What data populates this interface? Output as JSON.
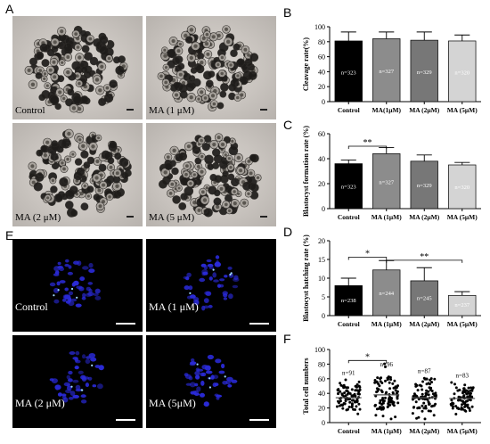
{
  "panel_letters": {
    "a": "A",
    "b": "B",
    "c": "C",
    "d": "D",
    "e": "E",
    "f": "F"
  },
  "panel_a": {
    "labels": [
      "Control",
      "MA (1 μM)",
      "MA (2 μM)",
      "MA (5 μM)"
    ]
  },
  "panel_e": {
    "labels": [
      "Control",
      "MA (1 μM)",
      "MA (2 μM)",
      "MA (5μM)"
    ]
  },
  "colors": {
    "control": "#000000",
    "ma1": "#8c8c8c",
    "ma2": "#777777",
    "ma5": "#d4d4d4",
    "nuclei": "#2a2ad8",
    "photo_bg": "#cfcac5"
  },
  "chart_data": [
    {
      "id": "B",
      "type": "bar",
      "ylabel": "Cleavage rate(%)",
      "categories": [
        "Control",
        "MA(1μM)",
        "MA (2μM)",
        "MA (5μM)"
      ],
      "values": [
        81,
        84,
        82,
        81
      ],
      "errors": [
        12,
        9,
        11,
        8
      ],
      "bar_labels": [
        "n=323",
        "n=327",
        "n=329",
        "n=320"
      ],
      "ylim": [
        0,
        100
      ],
      "yticks": [
        0,
        20,
        40,
        60,
        80,
        100
      ],
      "significance": []
    },
    {
      "id": "C",
      "type": "bar",
      "ylabel": "Blastocyst formation rate (%)",
      "categories": [
        "Control",
        "MA (1μM)",
        "MA (2μM)",
        "MA (5μM)"
      ],
      "values": [
        36,
        44,
        38,
        35
      ],
      "errors": [
        3,
        5,
        5,
        2
      ],
      "bar_labels": [
        "n=323",
        "n=327",
        "n=329",
        "n=320"
      ],
      "ylim": [
        0,
        60
      ],
      "yticks": [
        0,
        20,
        40,
        60
      ],
      "significance": [
        {
          "from": 0,
          "to": 1,
          "label": "**",
          "y": 50
        }
      ]
    },
    {
      "id": "D",
      "type": "bar",
      "ylabel": "Blastocyst hatching rate (%)",
      "categories": [
        "Control",
        "MA (1μM)",
        "MA (2μM)",
        "MA (5μM)"
      ],
      "values": [
        8,
        12.2,
        9.3,
        5.4
      ],
      "errors": [
        2,
        2.5,
        3.5,
        1
      ],
      "bar_labels": [
        "n=238",
        "n=244",
        "n=245",
        "n=237"
      ],
      "ylim": [
        0,
        20
      ],
      "yticks": [
        0,
        5,
        10,
        15,
        20
      ],
      "significance": [
        {
          "from": 0,
          "to": 1,
          "label": "*",
          "y": 15.6
        },
        {
          "from": 1,
          "to": 3,
          "label": "**",
          "y": 14.8
        }
      ]
    },
    {
      "id": "F",
      "type": "scatter",
      "ylabel": "Total cell numbers",
      "categories": [
        "Control",
        "MA (1μM)",
        "MA (2μM)",
        "MA (5μM)"
      ],
      "means": [
        34,
        38,
        34,
        33
      ],
      "sds": [
        11,
        14,
        12,
        10
      ],
      "counts": [
        91,
        96,
        87,
        83
      ],
      "group_labels": [
        "n=91",
        "n=96",
        "n=87",
        "n=83"
      ],
      "ylim": [
        0,
        100
      ],
      "yticks": [
        0,
        20,
        40,
        60,
        80,
        100
      ],
      "significance": [
        {
          "from": 0,
          "to": 1,
          "label": "*",
          "y": 85
        }
      ]
    }
  ]
}
